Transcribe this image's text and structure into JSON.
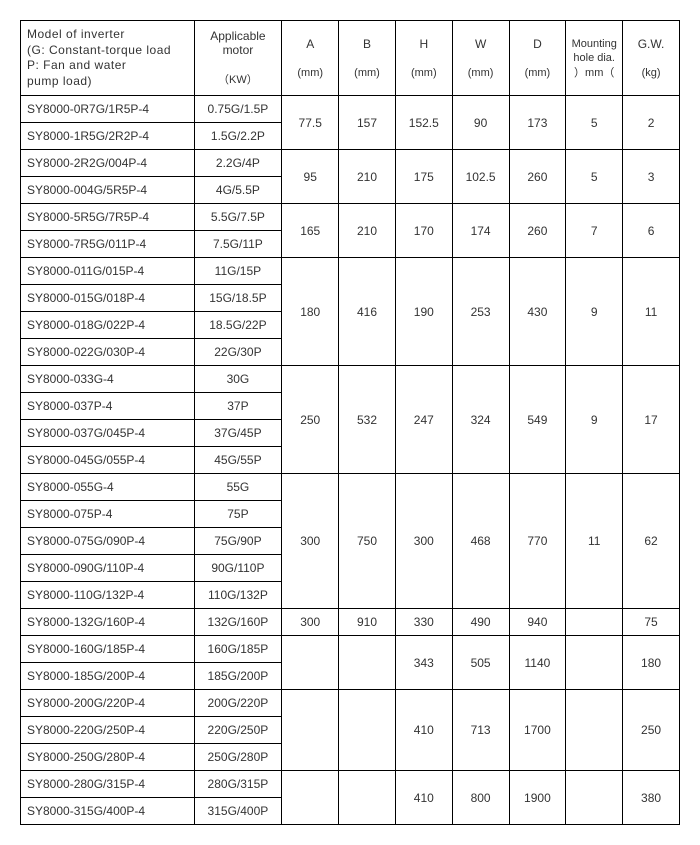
{
  "headers": {
    "model_line1": "Model of inverter",
    "model_line2": "(G: Constant-torque load",
    "model_line3": "P: Fan and water",
    "model_line4": "pump load)",
    "motor": "Applicable motor",
    "motor_unit": "（KW）",
    "a": "A",
    "a_unit": "(mm)",
    "b": "B",
    "b_unit": "(mm)",
    "h": "H",
    "h_unit": "(mm)",
    "w": "W",
    "w_unit": "(mm)",
    "d": "D",
    "d_unit": "(mm)",
    "hole": "Mounting hole dia.",
    "hole_unit": "）mm（",
    "gw": "G.W.",
    "gw_unit": "(kg)"
  },
  "groups": [
    {
      "rows": [
        {
          "model": "SY8000-0R7G/1R5P-4",
          "motor": "0.75G/1.5P"
        },
        {
          "model": "SY8000-1R5G/2R2P-4",
          "motor": "1.5G/2.2P"
        }
      ],
      "a": "77.5",
      "b": "157",
      "h": "152.5",
      "w": "90",
      "d": "173",
      "hole": "5",
      "gw": "2"
    },
    {
      "rows": [
        {
          "model": "SY8000-2R2G/004P-4",
          "motor": "2.2G/4P"
        },
        {
          "model": "SY8000-004G/5R5P-4",
          "motor": "4G/5.5P"
        }
      ],
      "a": "95",
      "b": "210",
      "h": "175",
      "w": "102.5",
      "d": "260",
      "hole": "5",
      "gw": "3"
    },
    {
      "rows": [
        {
          "model": "SY8000-5R5G/7R5P-4",
          "motor": "5.5G/7.5P"
        },
        {
          "model": "SY8000-7R5G/011P-4",
          "motor": "7.5G/11P"
        }
      ],
      "a": "165",
      "b": "210",
      "h": "170",
      "w": "174",
      "d": "260",
      "hole": "7",
      "gw": "6"
    },
    {
      "rows": [
        {
          "model": "SY8000-011G/015P-4",
          "motor": "11G/15P"
        },
        {
          "model": "SY8000-015G/018P-4",
          "motor": "15G/18.5P"
        },
        {
          "model": "SY8000-018G/022P-4",
          "motor": "18.5G/22P"
        },
        {
          "model": "SY8000-022G/030P-4",
          "motor": "22G/30P"
        }
      ],
      "a": "180",
      "b": "416",
      "h": "190",
      "w": "253",
      "d": "430",
      "hole": "9",
      "gw": "11"
    },
    {
      "rows": [
        {
          "model": "SY8000-033G-4",
          "motor": "30G"
        },
        {
          "model": "SY8000-037P-4",
          "motor": "37P"
        },
        {
          "model": "SY8000-037G/045P-4",
          "motor": "37G/45P"
        },
        {
          "model": "SY8000-045G/055P-4",
          "motor": "45G/55P"
        }
      ],
      "a": "250",
      "b": "532",
      "h": "247",
      "w": "324",
      "d": "549",
      "hole": "9",
      "gw": "17"
    },
    {
      "rows": [
        {
          "model": "SY8000-055G-4",
          "motor": "55G"
        },
        {
          "model": "SY8000-075P-4",
          "motor": "75P"
        },
        {
          "model": "SY8000-075G/090P-4",
          "motor": "75G/90P"
        },
        {
          "model": "SY8000-090G/110P-4",
          "motor": "90G/110P"
        },
        {
          "model": "SY8000-110G/132P-4",
          "motor": "110G/132P"
        }
      ],
      "a": "300",
      "b": "750",
      "h": "300",
      "w": "468",
      "d": "770",
      "hole": "11",
      "gw": "62"
    },
    {
      "rows": [
        {
          "model": "SY8000-132G/160P-4",
          "motor": "132G/160P"
        }
      ],
      "a": "300",
      "b": "910",
      "h": "330",
      "w": "490",
      "d": "940",
      "hole": "",
      "gw": "75"
    },
    {
      "rows": [
        {
          "model": "SY8000-160G/185P-4",
          "motor": "160G/185P"
        },
        {
          "model": "SY8000-185G/200P-4",
          "motor": "185G/200P"
        }
      ],
      "a": "",
      "b": "",
      "h": "343",
      "w": "505",
      "d": "1140",
      "hole": "",
      "gw": "180"
    },
    {
      "rows": [
        {
          "model": "SY8000-200G/220P-4",
          "motor": "200G/220P"
        },
        {
          "model": "SY8000-220G/250P-4",
          "motor": "220G/250P"
        },
        {
          "model": "SY8000-250G/280P-4",
          "motor": "250G/280P"
        }
      ],
      "a": "",
      "b": "",
      "h": "410",
      "w": "713",
      "d": "1700",
      "hole": "",
      "gw": "250"
    },
    {
      "rows": [
        {
          "model": "SY8000-280G/315P-4",
          "motor": "280G/315P"
        },
        {
          "model": "SY8000-315G/400P-4",
          "motor": "315G/400P"
        }
      ],
      "a": "",
      "b": "",
      "h": "410",
      "w": "800",
      "d": "1900",
      "hole": "",
      "gw": "380"
    }
  ]
}
